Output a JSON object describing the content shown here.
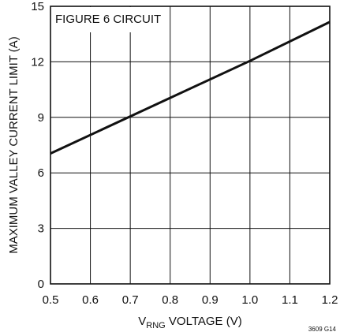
{
  "chart_data": {
    "type": "line",
    "title": "",
    "annotation": "FIGURE 6 CIRCUIT",
    "xlabel_main": "V",
    "xlabel_sub": "RNG",
    "xlabel_rest": " VOLTAGE (V)",
    "ylabel": "MAXIMUM VALLEY CURRENT LIMIT (A)",
    "figure_code": "3609 G14",
    "xlim": [
      0.5,
      1.2
    ],
    "ylim": [
      0,
      15
    ],
    "x_ticks": [
      "0.5",
      "0.6",
      "0.7",
      "0.8",
      "0.9",
      "1.0",
      "1.1",
      "1.2"
    ],
    "y_ticks": [
      "0",
      "3",
      "6",
      "9",
      "12",
      "15"
    ],
    "grid": true,
    "series": [
      {
        "x": [
          0.5,
          0.7,
          1.0,
          1.2
        ],
        "y": [
          7.05,
          9.05,
          12.05,
          14.15
        ]
      }
    ]
  }
}
